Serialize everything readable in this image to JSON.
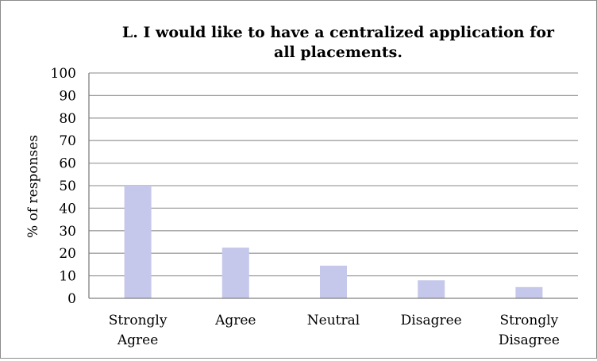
{
  "chart_data": {
    "type": "bar",
    "title_lines": [
      "L. I would like to have a centralized application for",
      "all placements."
    ],
    "ylabel": "% of responses",
    "xlabel": "",
    "categories": [
      [
        "Strongly",
        "Agree"
      ],
      [
        "Agree"
      ],
      [
        "Neutral"
      ],
      [
        "Disagree"
      ],
      [
        "Strongly",
        "Disagree"
      ]
    ],
    "values": [
      50,
      22.5,
      14.5,
      8,
      5
    ],
    "ylim": [
      0,
      100
    ],
    "yticks": [
      0,
      10,
      20,
      30,
      40,
      50,
      60,
      70,
      80,
      90,
      100
    ],
    "grid": true,
    "legend": "none",
    "bar_color": "#c5c8ea",
    "grid_color": "#a0a0a0"
  }
}
